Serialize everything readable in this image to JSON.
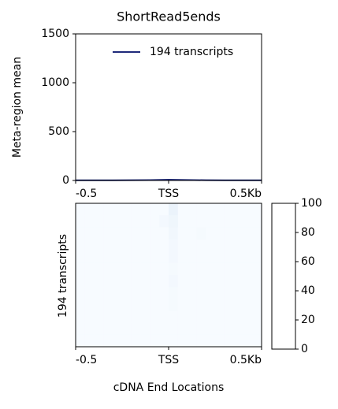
{
  "chart_data": [
    {
      "type": "line",
      "title": "ShortRead5ends",
      "ylabel": "Meta-region mean",
      "x": [
        -0.5,
        -0.4,
        -0.3,
        -0.2,
        -0.1,
        0,
        0.1,
        0.2,
        0.3,
        0.4,
        0.5
      ],
      "series": [
        {
          "name": "194 transcripts",
          "color": "#1f2a7a",
          "values": [
            2,
            2,
            2,
            3,
            4,
            8,
            5,
            3,
            2,
            2,
            2
          ]
        }
      ],
      "xlim": [
        -0.5,
        0.5
      ],
      "xticks": [
        -0.5,
        {
          "value": 0,
          "label": "TSS"
        },
        {
          "value": 0.5,
          "label": "0.5Kb"
        }
      ],
      "ylim": [
        0,
        1500
      ],
      "yticks": [
        0,
        500,
        1000,
        1500
      ],
      "legend": "upper right"
    },
    {
      "type": "heatmap",
      "ylabel": "194 transcripts",
      "xlabel": "cDNA End Locations",
      "xlim": [
        -0.5,
        0.5
      ],
      "xticks": [
        -0.5,
        {
          "value": 0,
          "label": "TSS"
        },
        {
          "value": 0.5,
          "label": "0.5Kb"
        }
      ],
      "clim": [
        0,
        100
      ],
      "cticks": [
        0,
        20,
        40,
        60,
        80,
        100
      ],
      "colormap": [
        "#f7fbff",
        "#c6dbef",
        "#6baed6",
        "#2171b5",
        "#08306b"
      ],
      "matrix": [
        [
          0,
          0,
          0,
          0,
          0,
          0,
          0,
          0,
          0,
          0,
          6,
          0,
          0,
          0,
          0,
          0,
          0,
          0,
          0,
          0
        ],
        [
          0,
          0,
          0,
          0,
          0,
          0,
          0,
          0,
          0,
          2,
          4,
          0,
          0,
          0,
          0,
          0,
          0,
          0,
          0,
          0
        ],
        [
          0,
          0,
          0,
          0,
          0,
          0,
          0,
          0,
          0,
          0,
          3,
          0,
          0,
          1,
          0,
          0,
          0,
          0,
          0,
          0
        ],
        [
          0,
          0,
          0,
          0,
          0,
          0,
          0,
          0,
          0,
          0,
          2,
          0,
          0,
          0,
          0,
          0,
          0,
          0,
          0,
          0
        ],
        [
          0,
          0,
          0,
          0,
          0,
          0,
          0,
          0,
          0,
          0,
          2,
          0,
          0,
          0,
          0,
          0,
          0,
          0,
          0,
          0
        ],
        [
          0,
          0,
          0,
          0,
          0,
          0,
          0,
          0,
          0,
          0,
          1,
          0,
          0,
          0,
          0,
          0,
          0,
          0,
          0,
          0
        ],
        [
          0,
          0,
          0,
          0,
          0,
          0,
          0,
          0,
          0,
          0,
          2,
          0,
          0,
          0,
          0,
          0,
          0,
          0,
          0,
          0
        ],
        [
          0,
          0,
          0,
          0,
          0,
          0,
          0,
          0,
          0,
          0,
          1,
          0,
          0,
          0,
          0,
          0,
          0,
          0,
          0,
          0
        ],
        [
          0,
          0,
          0,
          0,
          0,
          0,
          0,
          0,
          0,
          0,
          1,
          0,
          0,
          0,
          0,
          0,
          0,
          0,
          0,
          0
        ],
        [
          0,
          0,
          0,
          0,
          0,
          0,
          0,
          0,
          0,
          0,
          0,
          0,
          0,
          0,
          0,
          0,
          0,
          0,
          0,
          0
        ],
        [
          0,
          0,
          0,
          0,
          0,
          0,
          0,
          0,
          0,
          0,
          0,
          0,
          0,
          0,
          0,
          0,
          0,
          0,
          0,
          0
        ],
        [
          0,
          0,
          0,
          0,
          0,
          0,
          0,
          0,
          0,
          0,
          0,
          0,
          0,
          0,
          0,
          0,
          0,
          0,
          0,
          0
        ]
      ]
    }
  ]
}
